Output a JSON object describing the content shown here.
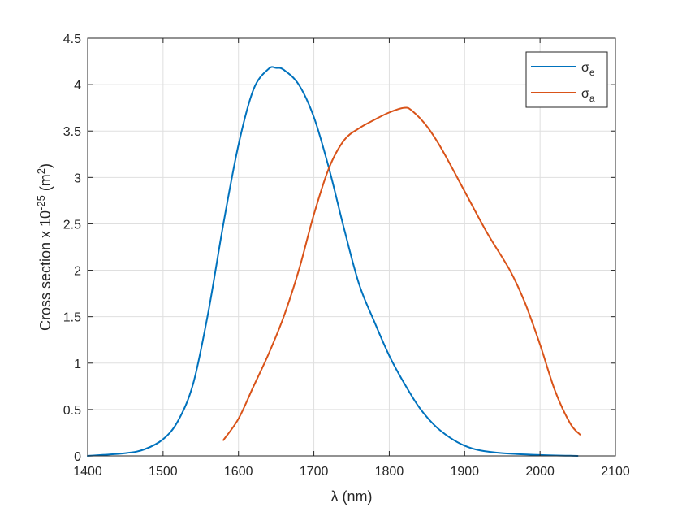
{
  "chart_data": {
    "type": "line",
    "xlabel": "λ (nm)",
    "ylabel": {
      "prefix": "Cross section x 10",
      "exponent": "-25",
      "unit_open": " (m",
      "unit_exponent": "2",
      "unit_close": ")"
    },
    "xlim": [
      1400,
      2100
    ],
    "ylim": [
      0,
      4.5
    ],
    "xticks": [
      1400,
      1500,
      1600,
      1700,
      1800,
      1900,
      2000,
      2100
    ],
    "yticks": [
      0,
      0.5,
      1,
      1.5,
      2,
      2.5,
      3,
      3.5,
      4,
      4.5
    ],
    "ytick_labels": [
      "0",
      "0.5",
      "1",
      "1.5",
      "2",
      "2.5",
      "3",
      "3.5",
      "4",
      "4.5"
    ],
    "grid": true,
    "legend_position": "top-right",
    "series": [
      {
        "name": "σe",
        "name_base": "σ",
        "name_sub": "e",
        "color": "#0072BD",
        "x": [
          1400,
          1450,
          1475,
          1500,
          1520,
          1540,
          1560,
          1580,
          1600,
          1620,
          1640,
          1650,
          1660,
          1680,
          1700,
          1720,
          1740,
          1760,
          1780,
          1800,
          1820,
          1840,
          1860,
          1880,
          1900,
          1920,
          1950,
          2000,
          2050
        ],
        "y": [
          0,
          0.03,
          0.07,
          0.18,
          0.38,
          0.78,
          1.55,
          2.5,
          3.35,
          3.95,
          4.17,
          4.18,
          4.16,
          4.0,
          3.65,
          3.1,
          2.45,
          1.85,
          1.45,
          1.08,
          0.78,
          0.52,
          0.33,
          0.2,
          0.11,
          0.06,
          0.03,
          0.01,
          0
        ]
      },
      {
        "name": "σa",
        "name_base": "σ",
        "name_sub": "a",
        "color": "#D95319",
        "x": [
          1580,
          1600,
          1620,
          1640,
          1660,
          1680,
          1700,
          1720,
          1740,
          1760,
          1780,
          1800,
          1820,
          1830,
          1850,
          1870,
          1900,
          1930,
          1960,
          1980,
          2000,
          2020,
          2040,
          2053
        ],
        "y": [
          0.17,
          0.4,
          0.75,
          1.1,
          1.5,
          2.0,
          2.6,
          3.1,
          3.4,
          3.53,
          3.62,
          3.7,
          3.75,
          3.72,
          3.55,
          3.3,
          2.85,
          2.4,
          2.0,
          1.65,
          1.2,
          0.7,
          0.35,
          0.23
        ]
      }
    ]
  }
}
